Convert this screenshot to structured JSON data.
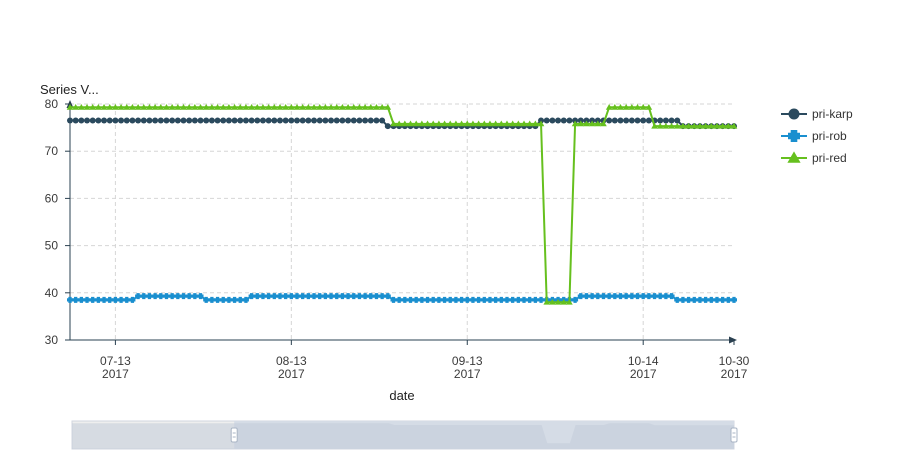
{
  "chart_data": {
    "type": "line",
    "y_axis_title": "Series V...",
    "xlabel": "date",
    "ylim": [
      30,
      80
    ],
    "y_ticks": [
      30,
      40,
      50,
      60,
      70,
      80
    ],
    "x_domain": [
      "2017-07-05",
      "2017-10-30"
    ],
    "x_ticks": [
      {
        "date": "2017-07-13",
        "line1": "07-13",
        "line2": "2017"
      },
      {
        "date": "2017-08-13",
        "line1": "08-13",
        "line2": "2017"
      },
      {
        "date": "2017-09-13",
        "line1": "09-13",
        "line2": "2017"
      },
      {
        "date": "2017-10-14",
        "line1": "10-14",
        "line2": "2017"
      },
      {
        "date": "2017-10-30",
        "line1": "10-30",
        "line2": "2017"
      }
    ],
    "grid": true,
    "legend_position": "right-top",
    "series": [
      {
        "name": "pri-karp",
        "color": "#2b4a5e",
        "marker": "circle",
        "segments": [
          {
            "from": "2017-07-05",
            "to": "2017-08-29",
            "y": 76.5
          },
          {
            "from": "2017-08-30",
            "to": "2017-09-25",
            "y": 75.3
          },
          {
            "from": "2017-09-26",
            "to": "2017-10-20",
            "y": 76.5
          },
          {
            "from": "2017-10-21",
            "to": "2017-10-30",
            "y": 75.3
          }
        ]
      },
      {
        "name": "pri-rob",
        "color": "#1a8fcf",
        "marker": "plus",
        "segments": [
          {
            "from": "2017-07-05",
            "to": "2017-07-16",
            "y": 38.5
          },
          {
            "from": "2017-07-17",
            "to": "2017-07-28",
            "y": 39.3
          },
          {
            "from": "2017-07-29",
            "to": "2017-08-05",
            "y": 38.5
          },
          {
            "from": "2017-08-06",
            "to": "2017-08-30",
            "y": 39.3
          },
          {
            "from": "2017-08-31",
            "to": "2017-10-02",
            "y": 38.5
          },
          {
            "from": "2017-10-03",
            "to": "2017-10-19",
            "y": 39.3
          },
          {
            "from": "2017-10-20",
            "to": "2017-10-30",
            "y": 38.5
          }
        ]
      },
      {
        "name": "pri-red",
        "color": "#66c01e",
        "marker": "triangle",
        "segments": [
          {
            "from": "2017-07-05",
            "to": "2017-08-30",
            "y": 79.3
          },
          {
            "from": "2017-08-31",
            "to": "2017-09-26",
            "y": 75.8
          },
          {
            "from": "2017-09-27",
            "to": "2017-10-01",
            "y": 38.0
          },
          {
            "from": "2017-10-02",
            "to": "2017-10-07",
            "y": 75.8
          },
          {
            "from": "2017-10-08",
            "to": "2017-10-15",
            "y": 79.3
          },
          {
            "from": "2017-10-16",
            "to": "2017-10-30",
            "y": 75.3
          }
        ]
      }
    ],
    "data_zoom": {
      "start": 0.245,
      "end": 1.0
    }
  }
}
